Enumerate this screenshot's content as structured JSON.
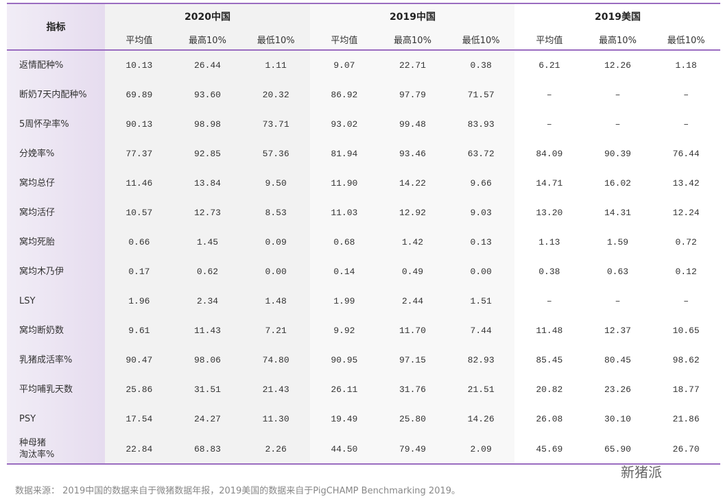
{
  "table": {
    "corner": "指标",
    "groups": [
      "2020中国",
      "2019中国",
      "2019美国"
    ],
    "subheaders": [
      "平均值",
      "最高10%",
      "最低10%"
    ],
    "rows": [
      {
        "label": "返情配种%",
        "values": [
          "10.13",
          "26.44",
          "1.11",
          "9.07",
          "22.71",
          "0.38",
          "6.21",
          "12.26",
          "1.18"
        ]
      },
      {
        "label": "断奶7天内配种%",
        "values": [
          "69.89",
          "93.60",
          "20.32",
          "86.92",
          "97.79",
          "71.57",
          "–",
          "–",
          "–"
        ]
      },
      {
        "label": "5周怀孕率%",
        "values": [
          "90.13",
          "98.98",
          "73.71",
          "93.02",
          "99.48",
          "83.93",
          "–",
          "–",
          "–"
        ]
      },
      {
        "label": "分娩率%",
        "values": [
          "77.37",
          "92.85",
          "57.36",
          "81.94",
          "93.46",
          "63.72",
          "84.09",
          "90.39",
          "76.44"
        ]
      },
      {
        "label": "窝均总仔",
        "values": [
          "11.46",
          "13.84",
          "9.50",
          "11.90",
          "14.22",
          "9.66",
          "14.71",
          "16.02",
          "13.42"
        ]
      },
      {
        "label": "窝均活仔",
        "values": [
          "10.57",
          "12.73",
          "8.53",
          "11.03",
          "12.92",
          "9.03",
          "13.20",
          "14.31",
          "12.24"
        ]
      },
      {
        "label": "窝均死胎",
        "values": [
          "0.66",
          "1.45",
          "0.09",
          "0.68",
          "1.42",
          "0.13",
          "1.13",
          "1.59",
          "0.72"
        ]
      },
      {
        "label": "窝均木乃伊",
        "values": [
          "0.17",
          "0.62",
          "0.00",
          "0.14",
          "0.49",
          "0.00",
          "0.38",
          "0.63",
          "0.12"
        ]
      },
      {
        "label": "LSY",
        "values": [
          "1.96",
          "2.34",
          "1.48",
          "1.99",
          "2.44",
          "1.51",
          "–",
          "–",
          "–"
        ]
      },
      {
        "label": "窝均断奶数",
        "values": [
          "9.61",
          "11.43",
          "7.21",
          "9.92",
          "11.70",
          "7.44",
          "11.48",
          "12.37",
          "10.65"
        ]
      },
      {
        "label": "乳猪成活率%",
        "values": [
          "90.47",
          "98.06",
          "74.80",
          "90.95",
          "97.15",
          "82.93",
          "85.45",
          "80.45",
          "98.62"
        ]
      },
      {
        "label": "平均哺乳天数",
        "values": [
          "25.86",
          "31.51",
          "21.43",
          "26.11",
          "31.76",
          "21.51",
          "20.82",
          "23.26",
          "18.77"
        ]
      },
      {
        "label": "PSY",
        "values": [
          "17.54",
          "24.27",
          "11.30",
          "19.49",
          "25.80",
          "14.26",
          "26.08",
          "30.10",
          "21.86"
        ]
      },
      {
        "label": "种母猪\n淘汰率%",
        "values": [
          "22.84",
          "68.83",
          "2.26",
          "44.50",
          "79.49",
          "2.09",
          "45.69",
          "65.90",
          "26.70"
        ]
      }
    ]
  },
  "footer": {
    "source": "数据来源： 2019中国的数据来自于微猪数据年报，2019美国的数据来自于PigCHAMP Benchmarking 2019。",
    "badge": "新猪派"
  }
}
